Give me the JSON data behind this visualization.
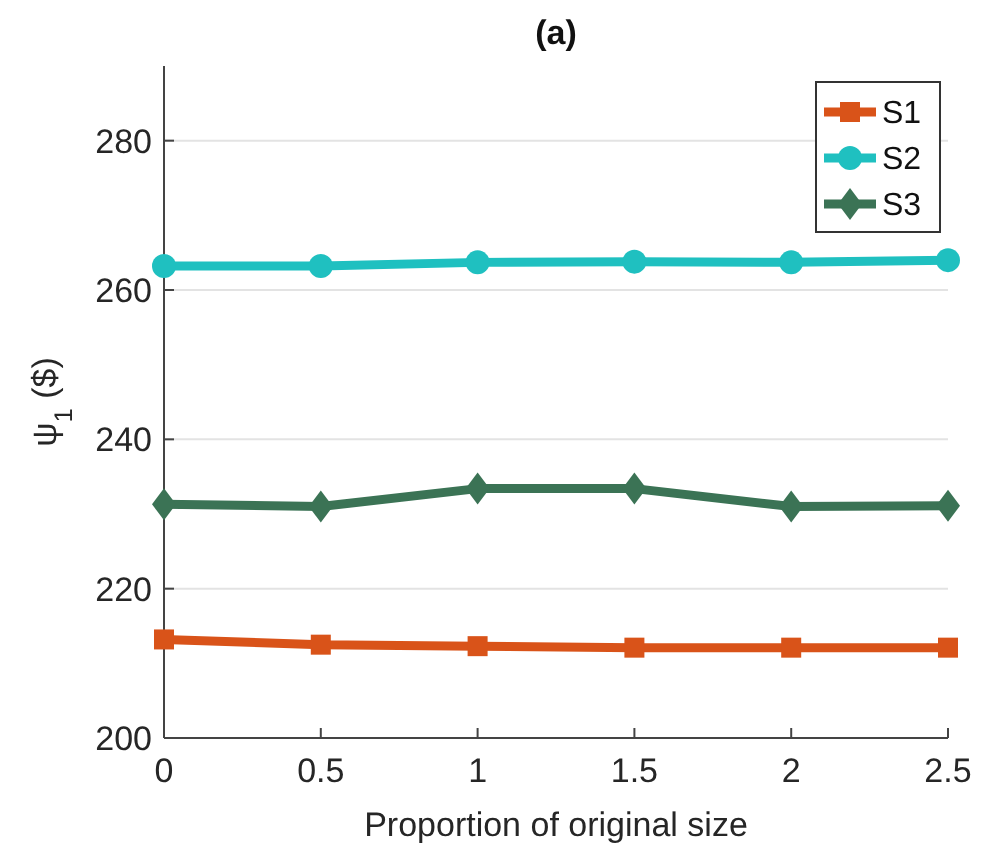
{
  "chart_data": {
    "type": "line",
    "title": "(a)",
    "xlabel": "Proportion of original size",
    "ylabel": "ψ$_{1}$ ($)",
    "x": [
      0,
      0.5,
      1,
      1.5,
      2,
      2.5
    ],
    "series": [
      {
        "name": "S1",
        "color": "#d95319",
        "marker": "square",
        "values": [
          213.2,
          212.5,
          212.3,
          212.1,
          212.1,
          212.1
        ]
      },
      {
        "name": "S2",
        "color": "#1fc0c0",
        "marker": "circle",
        "values": [
          263.2,
          263.2,
          263.7,
          263.8,
          263.7,
          264.0
        ]
      },
      {
        "name": "S3",
        "color": "#3b7355",
        "marker": "diamond",
        "values": [
          231.3,
          231.0,
          233.4,
          233.4,
          231.0,
          231.1
        ]
      }
    ],
    "xlim": [
      0,
      2.5
    ],
    "xticks": [
      0,
      0.5,
      1,
      1.5,
      2,
      2.5
    ],
    "ylim": [
      200,
      290
    ],
    "yticks": [
      200,
      220,
      240,
      260,
      280
    ],
    "grid": "y",
    "legend": "top right",
    "line_style": "solid"
  }
}
